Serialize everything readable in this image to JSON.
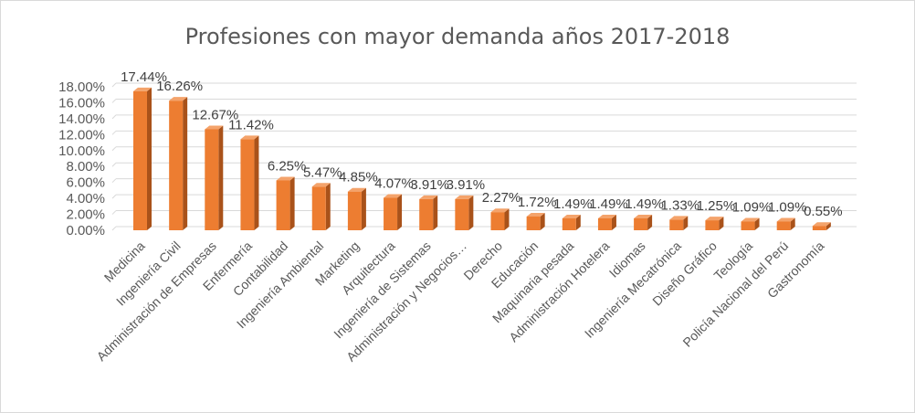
{
  "chart_data": {
    "type": "bar",
    "title": "Profesiones con mayor demanda años 2017-2018",
    "xlabel": "",
    "ylabel": "",
    "categories": [
      "Medicina",
      "Ingeniería Civil",
      "Administración de Empresas",
      "Enfermería",
      "Contabilidad",
      "Ingeniería Ambiental",
      "Marketing",
      "Arquitectura",
      "Ingeniería de Sistemas",
      "Administración y Negocios…",
      "Derecho",
      "Educación",
      "Maquinaria pesada",
      "Administración Hotelera",
      "Idiomas",
      "Ingeniería Mecatrónica",
      "Diseño Gráfico",
      "Teología",
      "Policía Nacional del Perú",
      "Gastronomía"
    ],
    "values": [
      17.44,
      16.26,
      12.67,
      11.42,
      6.25,
      5.47,
      4.85,
      4.07,
      3.91,
      3.91,
      2.27,
      1.72,
      1.49,
      1.49,
      1.49,
      1.33,
      1.25,
      1.09,
      1.09,
      0.55
    ],
    "data_labels": [
      "17.44%",
      "16.26%",
      "12.67%",
      "11.42%",
      "6.25%",
      "5.47%",
      "4.85%",
      "4.07%",
      "3.91%",
      "3.91%",
      "2.27%",
      "1.72%",
      "1.49%",
      "1.49%",
      "1.49%",
      "1.33%",
      "1.25%",
      "1.09%",
      "1.09%",
      "0.55%"
    ],
    "y_ticks": [
      0,
      2,
      4,
      6,
      8,
      10,
      12,
      14,
      16,
      18
    ],
    "y_tick_labels": [
      "0.00%",
      "2.00%",
      "4.00%",
      "6.00%",
      "8.00%",
      "10.00%",
      "12.00%",
      "14.00%",
      "16.00%",
      "18.00%"
    ],
    "ylim": [
      0,
      18
    ],
    "grid": true,
    "legend": "none",
    "style": "3d-column",
    "colors": {
      "bar_front": "#ED7D31",
      "bar_side": "#A9521A",
      "bar_top": "#F4A36B",
      "grid": "#d9d9d9",
      "text": "#595959"
    }
  }
}
